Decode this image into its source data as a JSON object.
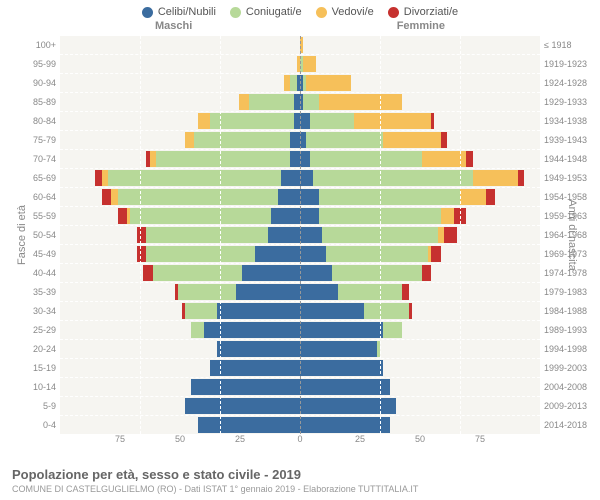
{
  "legend": [
    {
      "label": "Celibi/Nubili",
      "color": "#3b6c9f"
    },
    {
      "label": "Coniugati/e",
      "color": "#b7d999"
    },
    {
      "label": "Vedovi/e",
      "color": "#f6c05a"
    },
    {
      "label": "Divorziati/e",
      "color": "#c6312f"
    }
  ],
  "header_male": "Maschi",
  "header_female": "Femmine",
  "ylabel_left": "Fasce di età",
  "ylabel_right": "Anni di nascita",
  "xmax": 75,
  "xticks": [
    75,
    50,
    25,
    0,
    25,
    50,
    75
  ],
  "colors": {
    "single": "#3b6c9f",
    "married": "#b7d999",
    "widowed": "#f6c05a",
    "divorced": "#c6312f",
    "plot_bg": "#f6f5f1",
    "grid": "#ffffff",
    "center": "#999999"
  },
  "rows": [
    {
      "age": "100+",
      "year": "≤ 1918",
      "m": [
        0,
        0,
        0,
        0
      ],
      "f": [
        0,
        0,
        1,
        0
      ]
    },
    {
      "age": "95-99",
      "year": "1919-1923",
      "m": [
        0,
        0,
        1,
        0
      ],
      "f": [
        0,
        1,
        4,
        0
      ]
    },
    {
      "age": "90-94",
      "year": "1924-1928",
      "m": [
        1,
        2,
        2,
        0
      ],
      "f": [
        1,
        1,
        14,
        0
      ]
    },
    {
      "age": "85-89",
      "year": "1929-1933",
      "m": [
        2,
        14,
        3,
        0
      ],
      "f": [
        1,
        5,
        26,
        0
      ]
    },
    {
      "age": "80-84",
      "year": "1934-1938",
      "m": [
        2,
        26,
        4,
        0
      ],
      "f": [
        3,
        14,
        24,
        1
      ]
    },
    {
      "age": "75-79",
      "year": "1939-1943",
      "m": [
        3,
        30,
        3,
        0
      ],
      "f": [
        2,
        24,
        18,
        2
      ]
    },
    {
      "age": "70-74",
      "year": "1944-1948",
      "m": [
        3,
        42,
        2,
        1
      ],
      "f": [
        3,
        35,
        14,
        2
      ]
    },
    {
      "age": "65-69",
      "year": "1949-1953",
      "m": [
        6,
        54,
        2,
        2
      ],
      "f": [
        4,
        50,
        14,
        2
      ]
    },
    {
      "age": "60-64",
      "year": "1954-1958",
      "m": [
        7,
        50,
        2,
        3
      ],
      "f": [
        6,
        44,
        8,
        3
      ]
    },
    {
      "age": "55-59",
      "year": "1959-1963",
      "m": [
        9,
        44,
        1,
        3
      ],
      "f": [
        6,
        38,
        4,
        4
      ]
    },
    {
      "age": "50-54",
      "year": "1964-1968",
      "m": [
        10,
        38,
        0,
        3
      ],
      "f": [
        7,
        36,
        2,
        4
      ]
    },
    {
      "age": "45-49",
      "year": "1969-1973",
      "m": [
        14,
        34,
        0,
        3
      ],
      "f": [
        8,
        32,
        1,
        3
      ]
    },
    {
      "age": "40-44",
      "year": "1974-1978",
      "m": [
        18,
        28,
        0,
        3
      ],
      "f": [
        10,
        28,
        0,
        3
      ]
    },
    {
      "age": "35-39",
      "year": "1979-1983",
      "m": [
        20,
        18,
        0,
        1
      ],
      "f": [
        12,
        20,
        0,
        2
      ]
    },
    {
      "age": "30-34",
      "year": "1984-1988",
      "m": [
        26,
        10,
        0,
        1
      ],
      "f": [
        20,
        14,
        0,
        1
      ]
    },
    {
      "age": "25-29",
      "year": "1989-1993",
      "m": [
        30,
        4,
        0,
        0
      ],
      "f": [
        26,
        6,
        0,
        0
      ]
    },
    {
      "age": "20-24",
      "year": "1994-1998",
      "m": [
        26,
        0,
        0,
        0
      ],
      "f": [
        24,
        1,
        0,
        0
      ]
    },
    {
      "age": "15-19",
      "year": "1999-2003",
      "m": [
        28,
        0,
        0,
        0
      ],
      "f": [
        26,
        0,
        0,
        0
      ]
    },
    {
      "age": "10-14",
      "year": "2004-2008",
      "m": [
        34,
        0,
        0,
        0
      ],
      "f": [
        28,
        0,
        0,
        0
      ]
    },
    {
      "age": "5-9",
      "year": "2009-2013",
      "m": [
        36,
        0,
        0,
        0
      ],
      "f": [
        30,
        0,
        0,
        0
      ]
    },
    {
      "age": "0-4",
      "year": "2014-2018",
      "m": [
        32,
        0,
        0,
        0
      ],
      "f": [
        28,
        0,
        0,
        0
      ]
    }
  ],
  "title": "Popolazione per età, sesso e stato civile - 2019",
  "subtitle": "COMUNE DI CASTELGUGLIELMO (RO) - Dati ISTAT 1° gennaio 2019 - Elaborazione TUTTITALIA.IT"
}
